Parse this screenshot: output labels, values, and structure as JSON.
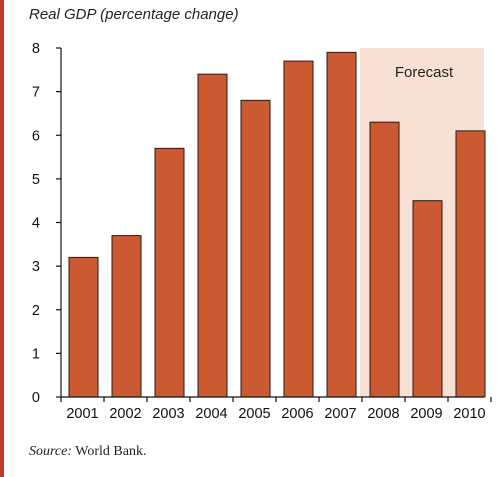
{
  "chart_data": {
    "type": "bar",
    "title": "Real GDP (percentage change)",
    "categories": [
      "2001",
      "2002",
      "2003",
      "2004",
      "2005",
      "2006",
      "2007",
      "2008",
      "2009",
      "2010"
    ],
    "values": [
      3.2,
      3.7,
      5.7,
      7.4,
      6.8,
      7.7,
      7.9,
      6.3,
      4.5,
      6.1
    ],
    "ylim": [
      0,
      8
    ],
    "yticks": [
      0,
      1,
      2,
      3,
      4,
      5,
      6,
      7,
      8
    ],
    "forecast_label": "Forecast",
    "forecast_categories": [
      "2008",
      "2009",
      "2010"
    ],
    "grid": false,
    "colors": {
      "bar": "#cb5a33",
      "bar_edge": "#2a1a12",
      "forecast_band": "#f6e1d4",
      "frame_rule": "#c0392b"
    }
  },
  "source": {
    "label": "Source:",
    "text": " World Bank."
  }
}
